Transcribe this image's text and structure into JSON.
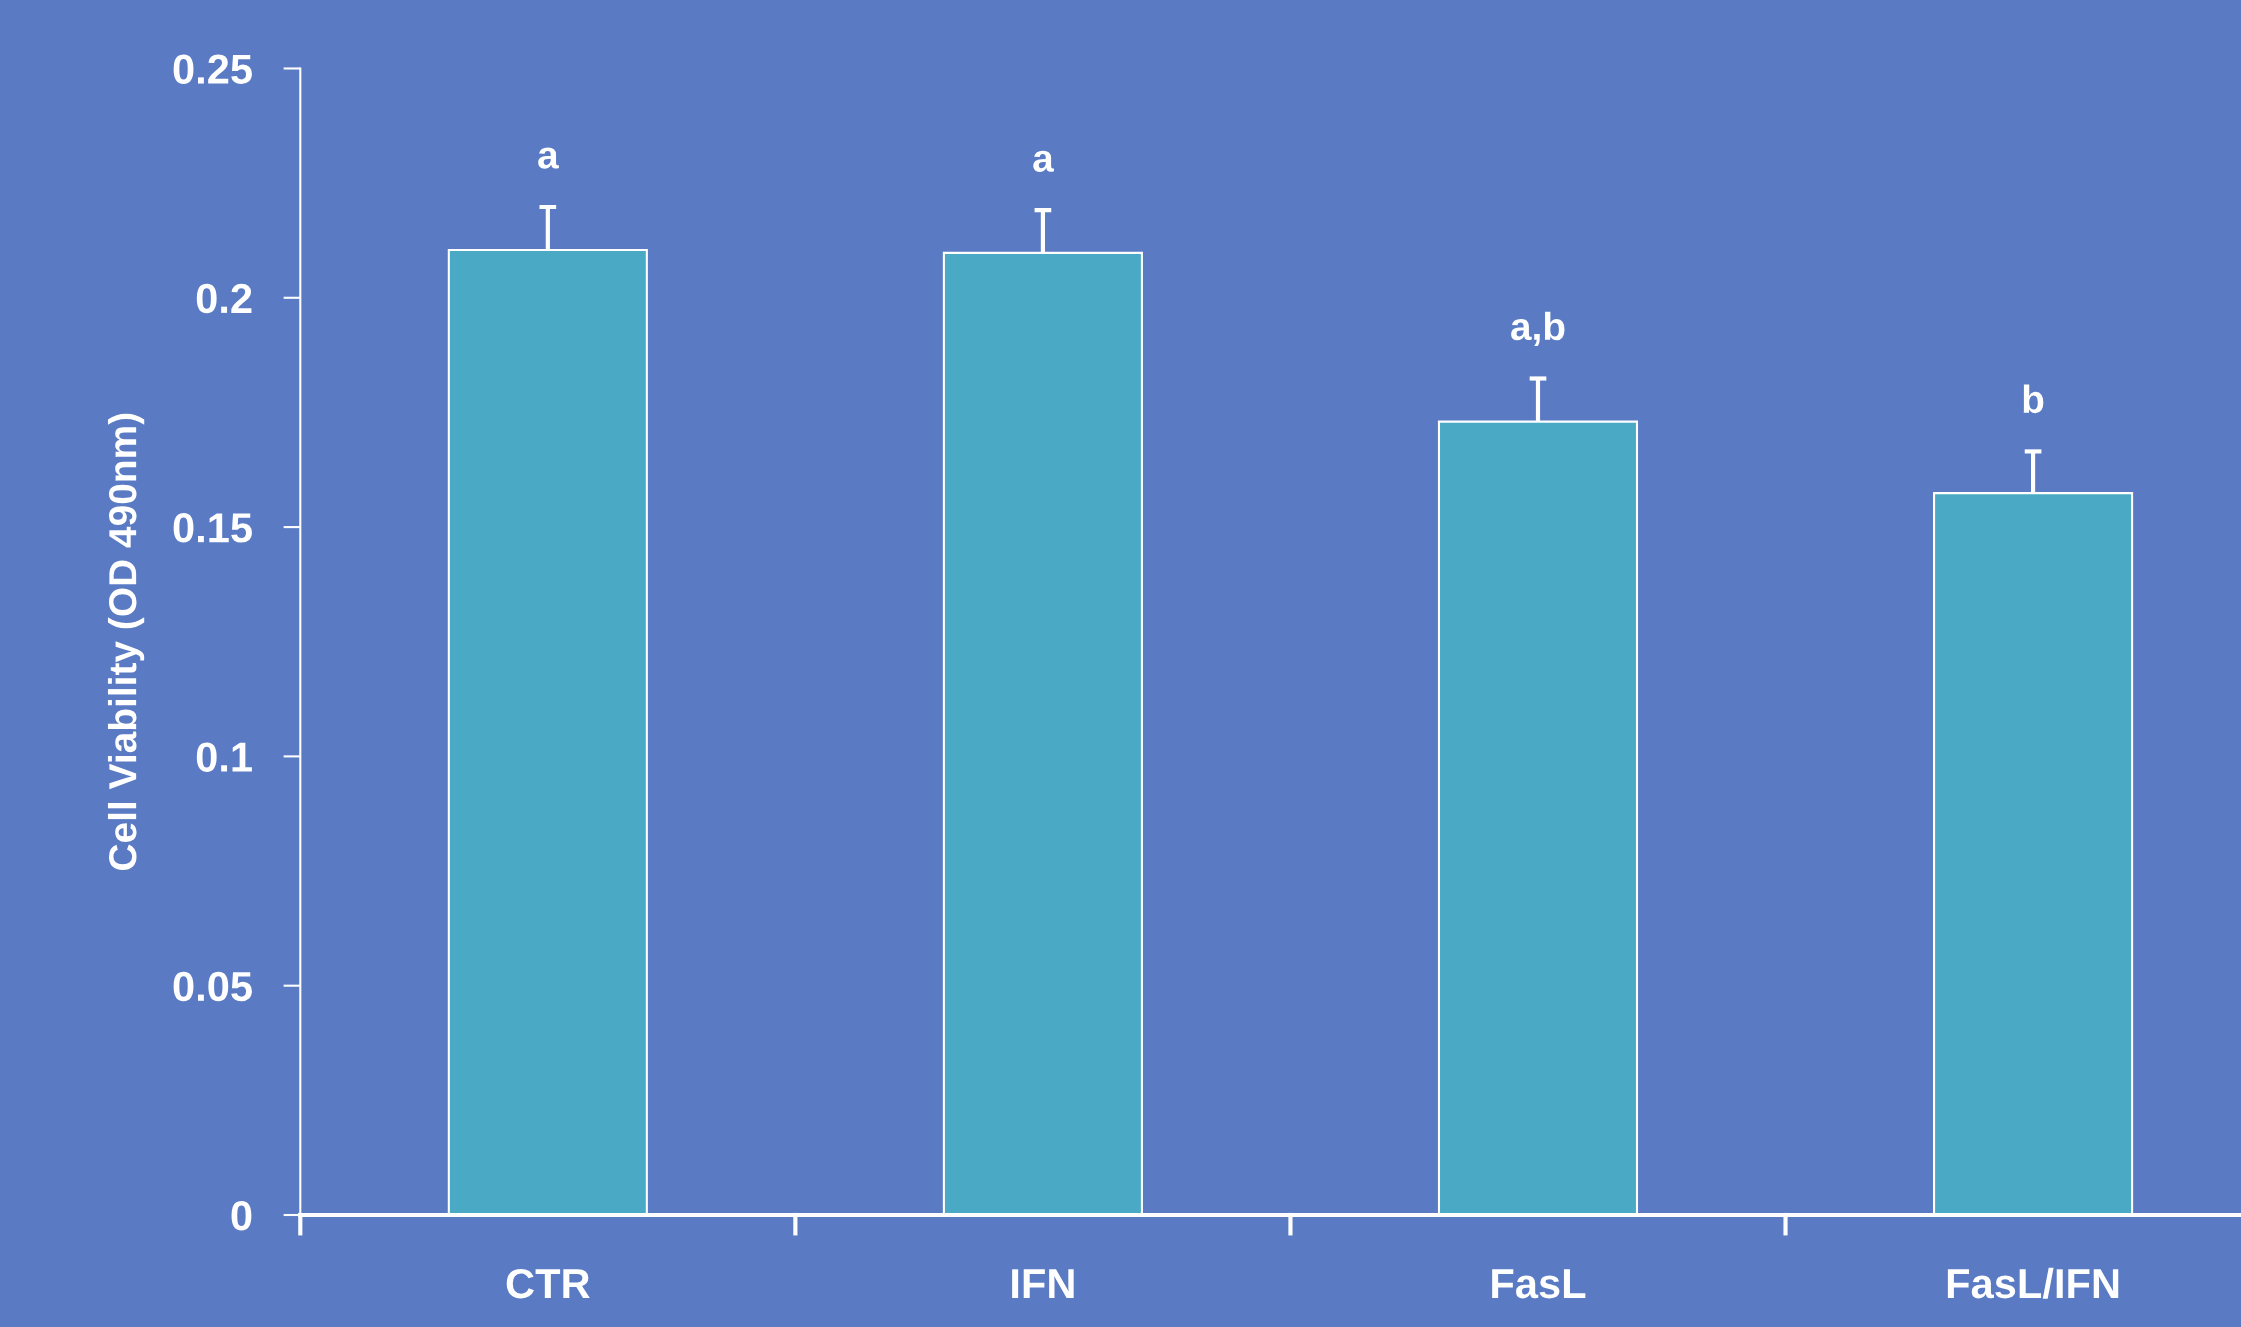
{
  "chart_data": {
    "type": "bar",
    "ylabel": "Cell Viability (OD 490nm)",
    "categories": [
      "CTR",
      "IFN",
      "FasL",
      "FasL/IFN"
    ],
    "values": [
      0.2104,
      0.2098,
      0.173,
      0.1574
    ],
    "errors": [
      0.0094,
      0.0093,
      0.0094,
      0.0091
    ],
    "color": "#4aaac6",
    "ylim": [
      0,
      0.25
    ],
    "yticks": [
      0,
      0.05,
      0.1,
      0.15,
      0.2,
      0.25
    ],
    "grid": false,
    "annotations": [
      "a",
      "a",
      "a,b",
      "b"
    ]
  }
}
